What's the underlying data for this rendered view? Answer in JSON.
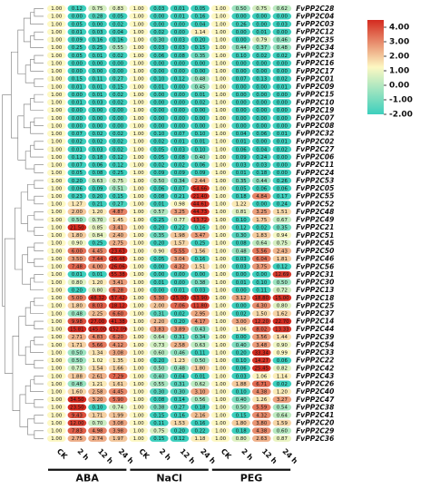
{
  "chart_data": {
    "type": "heatmap",
    "columns": [
      "CK",
      "2 h",
      "12 h",
      "24 h",
      "CK",
      "2 h",
      "12 h",
      "24 h",
      "CK",
      "2 h",
      "12 h",
      "24 h"
    ],
    "groups": [
      {
        "label": "ABA",
        "start": 0,
        "end": 3
      },
      {
        "label": "NaCl",
        "start": 4,
        "end": 7
      },
      {
        "label": "PEG",
        "start": 8,
        "end": 11
      }
    ],
    "color_scale": {
      "ticks": [
        "4.00",
        "3.00",
        "2.00",
        "1.00",
        "0.00",
        "-1.00",
        "-2.00"
      ],
      "min": -2,
      "max": 4,
      "colors": {
        "high": "#d42a1f",
        "mid": "#fdf8c2",
        "low": "#3ccfbd"
      }
    },
    "rows": [
      {
        "gene": "FvPP2C28",
        "values": [
          "1.00",
          "0.12",
          "0.75",
          "0.83",
          "1.00",
          "0.03",
          "0.01",
          "0.05",
          "1.00",
          "0.50",
          "0.75",
          "0.62"
        ]
      },
      {
        "gene": "FvPP2C04",
        "values": [
          "1.00",
          "0.00",
          "0.28",
          "0.05",
          "1.00",
          "0.00",
          "0.01",
          "0.16",
          "1.00",
          "0.00",
          "0.00",
          "0.00"
        ]
      },
      {
        "gene": "FvPP2C03",
        "values": [
          "1.00",
          "0.05",
          "0.00",
          "0.02",
          "1.00",
          "0.00",
          "0.00",
          "0.04",
          "1.00",
          "0.26",
          "0.00",
          "0.03"
        ]
      },
      {
        "gene": "FvPP2C12",
        "values": [
          "1.00",
          "0.01",
          "0.03",
          "0.04",
          "1.00",
          "0.02",
          "0.00",
          "1.14",
          "1.00",
          "0.00",
          "0.01",
          "0.00"
        ]
      },
      {
        "gene": "FvPP2C35",
        "values": [
          "1.00",
          "0.09",
          "0.16",
          "0.16",
          "1.00",
          "0.30",
          "0.03",
          "0.20",
          "1.00",
          "0.00",
          "0.79",
          "0.46"
        ]
      },
      {
        "gene": "FvPP2C34",
        "values": [
          "1.00",
          "0.25",
          "0.25",
          "0.55",
          "1.00",
          "0.03",
          "0.03",
          "0.15",
          "1.00",
          "0.44",
          "0.37",
          "0.48"
        ]
      },
      {
        "gene": "FvPP2C23",
        "values": [
          "1.00",
          "0.05",
          "0.01",
          "0.02",
          "1.00",
          "0.06",
          "0.08",
          "0.35",
          "1.00",
          "0.10",
          "0.02",
          "0.02"
        ]
      },
      {
        "gene": "FvPP2C16",
        "values": [
          "1.00",
          "0.00",
          "0.00",
          "0.00",
          "1.00",
          "0.00",
          "0.00",
          "0.00",
          "1.00",
          "0.00",
          "0.00",
          "0.00"
        ]
      },
      {
        "gene": "FvPP2C17",
        "values": [
          "1.00",
          "0.00",
          "0.00",
          "0.00",
          "1.00",
          "0.00",
          "0.00",
          "0.00",
          "1.00",
          "0.00",
          "0.00",
          "0.00"
        ]
      },
      {
        "gene": "FvPP2C01",
        "values": [
          "1.00",
          "0.15",
          "0.11",
          "0.27",
          "1.00",
          "0.10",
          "0.12",
          "0.48",
          "1.00",
          "0.07",
          "0.13",
          "0.02"
        ]
      },
      {
        "gene": "FvPP2C09",
        "values": [
          "1.00",
          "0.01",
          "0.01",
          "0.15",
          "1.00",
          "0.01",
          "0.00",
          "0.45",
          "1.00",
          "0.00",
          "0.00",
          "0.01"
        ]
      },
      {
        "gene": "FvPP2C15",
        "values": [
          "1.00",
          "0.00",
          "0.01",
          "0.02",
          "1.00",
          "0.00",
          "0.00",
          "0.01",
          "1.00",
          "0.00",
          "0.00",
          "0.00"
        ]
      },
      {
        "gene": "FvPP2C10",
        "values": [
          "1.00",
          "0.01",
          "0.03",
          "0.02",
          "1.00",
          "0.00",
          "0.00",
          "0.02",
          "1.00",
          "0.00",
          "0.00",
          "0.00"
        ]
      },
      {
        "gene": "FvPP2C19",
        "values": [
          "1.00",
          "0.00",
          "0.00",
          "0.00",
          "1.00",
          "0.00",
          "0.00",
          "0.00",
          "1.00",
          "0.00",
          "0.00",
          "0.00"
        ]
      },
      {
        "gene": "FvPP2C07",
        "values": [
          "1.00",
          "0.00",
          "0.00",
          "0.00",
          "1.00",
          "0.00",
          "0.00",
          "0.00",
          "1.00",
          "0.00",
          "0.00",
          "0.00"
        ]
      },
      {
        "gene": "FvPP2C08",
        "values": [
          "1.00",
          "0.00",
          "0.00",
          "0.00",
          "1.00",
          "0.00",
          "0.00",
          "0.00",
          "1.00",
          "0.00",
          "0.00",
          "0.00"
        ]
      },
      {
        "gene": "FvPP2C32",
        "values": [
          "1.00",
          "0.07",
          "0.02",
          "0.02",
          "1.00",
          "0.10",
          "0.07",
          "0.10",
          "1.00",
          "0.04",
          "0.06",
          "0.01"
        ]
      },
      {
        "gene": "FvPP2C02",
        "values": [
          "1.00",
          "0.02",
          "0.02",
          "0.02",
          "1.00",
          "0.02",
          "0.01",
          "0.01",
          "1.00",
          "0.01",
          "0.00",
          "0.01"
        ]
      },
      {
        "gene": "FvPP2C27",
        "values": [
          "1.00",
          "0.01",
          "0.03",
          "0.02",
          "1.00",
          "0.05",
          "0.03",
          "0.10",
          "1.00",
          "0.06",
          "0.04",
          "0.02"
        ]
      },
      {
        "gene": "FvPP2C06",
        "values": [
          "1.00",
          "0.12",
          "0.18",
          "0.12",
          "1.00",
          "0.05",
          "0.08",
          "0.40",
          "1.00",
          "0.09",
          "0.24",
          "0.00"
        ]
      },
      {
        "gene": "FvPP2C11",
        "values": [
          "1.00",
          "0.07",
          "0.06",
          "0.12",
          "1.00",
          "0.02",
          "0.02",
          "0.06",
          "1.00",
          "0.03",
          "0.03",
          "0.00"
        ]
      },
      {
        "gene": "FvPP2C24",
        "values": [
          "1.00",
          "0.05",
          "0.08",
          "0.25",
          "1.00",
          "0.09",
          "0.09",
          "0.09",
          "1.00",
          "0.01",
          "0.18",
          "0.00"
        ]
      },
      {
        "gene": "FvPP2C53",
        "values": [
          "1.00",
          "0.20",
          "0.63",
          "0.75",
          "1.00",
          "0.50",
          "0.34",
          "2.44",
          "1.00",
          "0.35",
          "0.44",
          "0.26"
        ]
      },
      {
        "gene": "FvPP2C05",
        "values": [
          "1.00",
          "0.06",
          "0.09",
          "0.51",
          "1.00",
          "0.06",
          "0.07",
          "54.66",
          "1.00",
          "0.05",
          "0.06",
          "0.06"
        ]
      },
      {
        "gene": "FvPP2C55",
        "values": [
          "1.00",
          "0.23",
          "0.20",
          "0.15",
          "1.00",
          "0.08",
          "0.21",
          "21.40",
          "1.00",
          "0.18",
          "4.84",
          "0.17"
        ]
      },
      {
        "gene": "FvPP2C52",
        "values": [
          "1.00",
          "1.27",
          "0.21",
          "0.27",
          "1.00",
          "0.01",
          "0.98",
          "44.61",
          "1.00",
          "1.22",
          "0.00",
          "0.24"
        ]
      },
      {
        "gene": "FvPP2C48",
        "values": [
          "1.00",
          "2.00",
          "1.20",
          "4.87",
          "1.00",
          "0.57",
          "3.25",
          "44.73",
          "1.00",
          "0.81",
          "3.25",
          "1.51"
        ]
      },
      {
        "gene": "FvPP2C49",
        "values": [
          "1.00",
          "0.50",
          "0.70",
          "1.45",
          "1.00",
          "0.25",
          "0.77",
          "13.72",
          "1.00",
          "0.10",
          "1.75",
          "0.67"
        ]
      },
      {
        "gene": "FvPP2C21",
        "values": [
          "1.00",
          "21.50",
          "0.85",
          "3.41",
          "1.00",
          "0.20",
          "0.22",
          "0.16",
          "1.00",
          "0.12",
          "0.02",
          "0.35"
        ]
      },
      {
        "gene": "FvPP2C51",
        "values": [
          "1.00",
          "1.80",
          "0.84",
          "2.40",
          "1.00",
          "0.35",
          "1.98",
          "3.47",
          "1.00",
          "0.30",
          "1.83",
          "0.94"
        ]
      },
      {
        "gene": "FvPP2C45",
        "values": [
          "1.00",
          "0.90",
          "0.25",
          "2.75",
          "1.00",
          "0.20",
          "1.57",
          "0.25",
          "1.00",
          "0.08",
          "0.64",
          "0.75"
        ]
      },
      {
        "gene": "FvPP2C50",
        "values": [
          "1.00",
          "6.00",
          "4.45",
          "23.63",
          "1.00",
          "0.90",
          "5.55",
          "1.56",
          "1.00",
          "0.48",
          "5.56",
          "2.43"
        ]
      },
      {
        "gene": "FvPP2C46",
        "values": [
          "1.00",
          "3.50",
          "7.44",
          "26.48",
          "1.00",
          "0.05",
          "3.04",
          "0.16",
          "1.00",
          "0.03",
          "6.04",
          "1.81"
        ]
      },
      {
        "gene": "FvPP2C56",
        "values": [
          "1.00",
          "7.48",
          "4.00",
          "26.06",
          "1.00",
          "0.00",
          "4.32",
          "1.51",
          "1.00",
          "0.03",
          "3.75",
          "0.12"
        ]
      },
      {
        "gene": "FvPP2C31",
        "values": [
          "1.00",
          "0.01",
          "0.01",
          "55.38",
          "1.00",
          "0.00",
          "0.00",
          "0.00",
          "1.00",
          "0.00",
          "0.00",
          "12.69"
        ]
      },
      {
        "gene": "FvPP2C30",
        "values": [
          "1.00",
          "0.80",
          "1.20",
          "3.41",
          "1.00",
          "0.01",
          "0.00",
          "0.38",
          "1.00",
          "0.01",
          "0.10",
          "0.50"
        ]
      },
      {
        "gene": "FvPP2C13",
        "values": [
          "1.00",
          "0.20",
          "0.80",
          "6.28",
          "1.00",
          "0.00",
          "0.01",
          "0.03",
          "1.00",
          "0.00",
          "0.11",
          "0.72"
        ]
      },
      {
        "gene": "FvPP2C18",
        "values": [
          "1.00",
          "5.00",
          "48.32",
          "57.42",
          "1.00",
          "5.30",
          "25.00",
          "33.90",
          "1.00",
          "3.12",
          "18.80",
          "15.00"
        ]
      },
      {
        "gene": "FvPP2C25",
        "values": [
          "1.00",
          "1.80",
          "8.03",
          "18.12",
          "1.00",
          "2.00",
          "7.06",
          "11.80",
          "1.00",
          "0.00",
          "4.30",
          "0.80"
        ]
      },
      {
        "gene": "FvPP2C37",
        "values": [
          "1.00",
          "0.48",
          "2.25",
          "6.60",
          "1.00",
          "0.31",
          "0.02",
          "2.95",
          "1.00",
          "0.02",
          "1.50",
          "1.62"
        ]
      },
      {
        "gene": "FvPP2C14",
        "values": [
          "1.00",
          "9.98",
          "27.00",
          "41.38",
          "1.00",
          "2.20",
          "0.20",
          "4.17",
          "1.00",
          "3.00",
          "12.20",
          "22.70"
        ]
      },
      {
        "gene": "FvPP2C44",
        "values": [
          "1.00",
          "15.81",
          "145.00",
          "152.09",
          "1.00",
          "3.83",
          "3.89",
          "0.43",
          "1.00",
          "1.06",
          "8.02",
          "13.33"
        ]
      },
      {
        "gene": "FvPP2C39",
        "values": [
          "1.00",
          "2.71",
          "4.83",
          "6.20",
          "1.00",
          "0.64",
          "0.31",
          "0.34",
          "1.00",
          "0.00",
          "3.56",
          "1.44"
        ]
      },
      {
        "gene": "FvPP2C54",
        "values": [
          "1.00",
          "1.71",
          "5.66",
          "4.12",
          "1.00",
          "0.73",
          "2.58",
          "0.63",
          "1.00",
          "0.40",
          "3.48",
          "0.90"
        ]
      },
      {
        "gene": "FvPP2C33",
        "values": [
          "1.00",
          "0.50",
          "1.34",
          "3.08",
          "1.00",
          "0.60",
          "0.46",
          "0.11",
          "1.00",
          "0.20",
          "33.34",
          "0.99"
        ]
      },
      {
        "gene": "FvPP2C22",
        "values": [
          "1.00",
          "0.50",
          "1.02",
          "1.35",
          "1.00",
          "0.20",
          "1.23",
          "0.50",
          "1.00",
          "0.10",
          "14.27",
          "0.06"
        ]
      },
      {
        "gene": "FvPP2C42",
        "values": [
          "1.00",
          "0.73",
          "1.54",
          "1.66",
          "1.00",
          "0.50",
          "0.48",
          "1.80",
          "1.00",
          "0.06",
          "25.45",
          "0.82"
        ]
      },
      {
        "gene": "FvPP2C43",
        "values": [
          "1.00",
          "1.88",
          "2.61",
          "7.29",
          "1.00",
          "0.40",
          "0.04",
          "0.01",
          "1.00",
          "0.03",
          "1.06",
          "1.14"
        ]
      },
      {
        "gene": "FvPP2C26",
        "values": [
          "1.00",
          "0.48",
          "1.21",
          "1.61",
          "1.00",
          "0.55",
          "0.31",
          "0.62",
          "1.00",
          "1.88",
          "6.71",
          "0.02"
        ]
      },
      {
        "gene": "FvPP2C40",
        "values": [
          "1.00",
          "1.60",
          "2.58",
          "4.45",
          "1.00",
          "0.30",
          "0.30",
          "3.10",
          "1.00",
          "0.10",
          "4.38",
          "1.20"
        ]
      },
      {
        "gene": "FvPP2C47",
        "values": [
          "1.00",
          "34.50",
          "3.20",
          "5.90",
          "1.00",
          "0.08",
          "0.14",
          "0.56",
          "1.00",
          "0.40",
          "1.26",
          "3.27"
        ]
      },
      {
        "gene": "FvPP2C38",
        "values": [
          "1.00",
          "23.50",
          "0.10",
          "0.74",
          "1.00",
          "0.38",
          "0.27",
          "0.18",
          "1.00",
          "0.50",
          "5.59",
          "0.54"
        ]
      },
      {
        "gene": "FvPP2C41",
        "values": [
          "1.00",
          "9.43",
          "1.71",
          "1.99",
          "1.00",
          "0.15",
          "0.16",
          "2.16",
          "1.00",
          "0.15",
          "4.32",
          "0.64"
        ]
      },
      {
        "gene": "FvPP2C20",
        "values": [
          "1.00",
          "12.00",
          "0.70",
          "3.08",
          "1.00",
          "0.11",
          "1.53",
          "0.16",
          "1.00",
          "1.80",
          "3.80",
          "1.59"
        ]
      },
      {
        "gene": "FvPP2C29",
        "values": [
          "1.00",
          "7.83",
          "4.98",
          "3.98",
          "1.00",
          "0.75",
          "0.20",
          "0.22",
          "1.00",
          "0.18",
          "4.38",
          "0.60"
        ]
      },
      {
        "gene": "FvPP2C36",
        "values": [
          "1.00",
          "2.75",
          "2.74",
          "1.97",
          "1.00",
          "0.15",
          "0.12",
          "1.18",
          "1.00",
          "0.80",
          "2.63",
          "0.87"
        ]
      }
    ]
  }
}
